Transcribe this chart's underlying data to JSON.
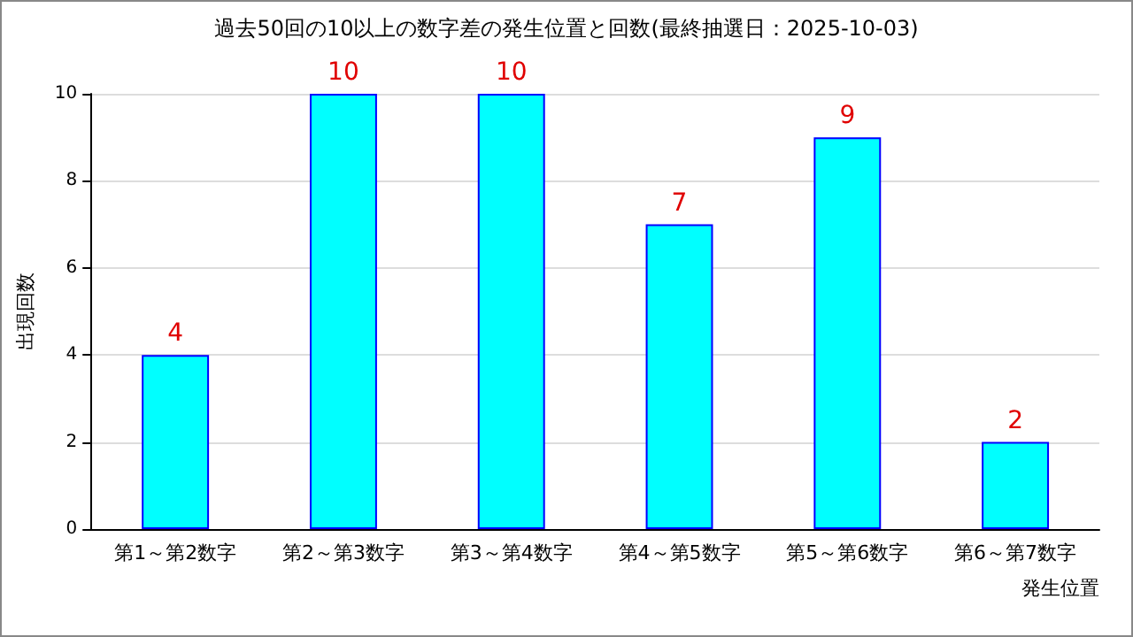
{
  "chart_data": {
    "type": "bar",
    "title": "過去50回の10以上の数字差の発生位置と回数(最終抽選日：2025-10-03)",
    "xlabel": "発生位置",
    "ylabel": "出現回数",
    "categories": [
      "第1～第2数字",
      "第2～第3数字",
      "第3～第4数字",
      "第4～第5数字",
      "第5～第6数字",
      "第6～第7数字"
    ],
    "values": [
      4,
      10,
      10,
      7,
      9,
      2
    ],
    "color": "#00ffff",
    "ylim": [
      0,
      10
    ],
    "yticks": [
      0,
      2,
      4,
      6,
      8,
      10
    ],
    "grid": "y",
    "data_labels": true
  }
}
